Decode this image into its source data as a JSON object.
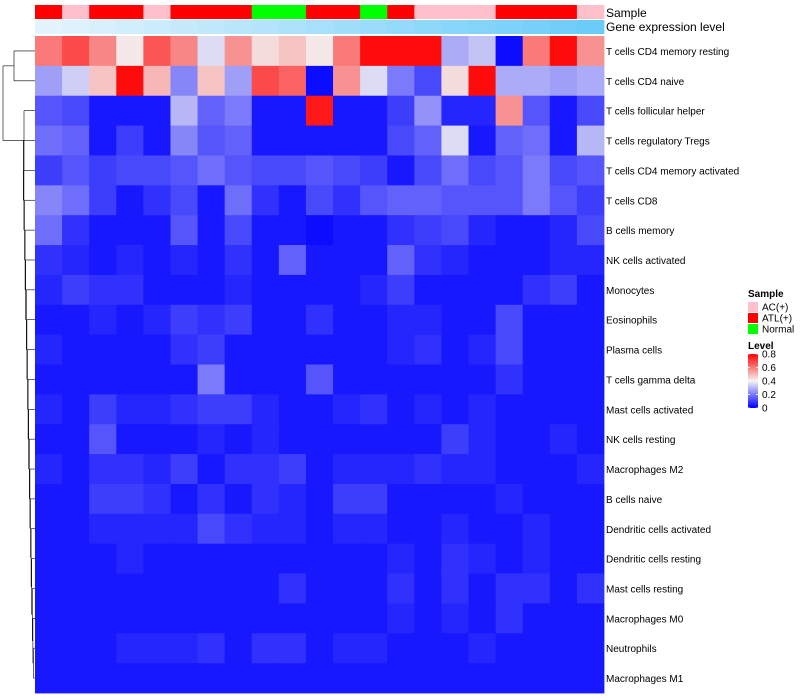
{
  "chart_data": {
    "type": "heatmap",
    "title": "",
    "annotations": {
      "sample_label": "Sample",
      "gene_label": "Gene expression level",
      "sample_groups": [
        "ATL(+)",
        "AC(+)",
        "ATL(+)",
        "ATL(+)",
        "AC(+)",
        "ATL(+)",
        "ATL(+)",
        "ATL(+)",
        "Normal",
        "Normal",
        "ATL(+)",
        "ATL(+)",
        "Normal",
        "ATL(+)",
        "AC(+)",
        "AC(+)",
        "AC(+)",
        "ATL(+)",
        "ATL(+)",
        "ATL(+)",
        "AC(+)"
      ],
      "gene_expression": [
        0.02,
        0.06,
        0.1,
        0.14,
        0.18,
        0.22,
        0.26,
        0.3,
        0.34,
        0.38,
        0.42,
        0.46,
        0.5,
        0.54,
        0.58,
        0.62,
        0.66,
        0.7,
        0.74,
        0.78,
        0.82
      ]
    },
    "rows": [
      "T cells CD4 memory resting",
      "T cells CD4 naive",
      "T cells follicular helper",
      "T cells regulatory  Tregs",
      "T cells CD4 memory activated",
      "T cells CD8",
      "B cells memory",
      "NK cells activated",
      "Monocytes",
      "Eosinophils",
      "Plasma cells",
      "T cells gamma delta",
      "Mast cells activated",
      "NK cells resting",
      "Macrophages M2",
      "B cells naive",
      "Dendritic cells activated",
      "Dendritic cells resting",
      "Mast cells resting",
      "Macrophages M0",
      "Neutrophils",
      "Macrophages M1"
    ],
    "values": [
      [
        0.6,
        0.68,
        0.58,
        0.42,
        0.66,
        0.58,
        0.36,
        0.56,
        0.44,
        0.48,
        0.42,
        0.6,
        0.78,
        0.78,
        0.78,
        0.28,
        0.32,
        0.02,
        0.6,
        0.78,
        0.56
      ],
      [
        0.26,
        0.34,
        0.48,
        0.78,
        0.5,
        0.22,
        0.48,
        0.26,
        0.68,
        0.64,
        0.02,
        0.56,
        0.36,
        0.2,
        0.12,
        0.44,
        0.78,
        0.28,
        0.28,
        0.26,
        0.28
      ],
      [
        0.14,
        0.12,
        0.04,
        0.04,
        0.04,
        0.3,
        0.16,
        0.2,
        0.04,
        0.04,
        0.76,
        0.04,
        0.04,
        0.1,
        0.24,
        0.06,
        0.06,
        0.56,
        0.14,
        0.04,
        0.12
      ],
      [
        0.18,
        0.16,
        0.04,
        0.1,
        0.04,
        0.22,
        0.14,
        0.16,
        0.04,
        0.04,
        0.04,
        0.04,
        0.04,
        0.12,
        0.16,
        0.36,
        0.04,
        0.16,
        0.18,
        0.04,
        0.3
      ],
      [
        0.1,
        0.14,
        0.1,
        0.12,
        0.12,
        0.14,
        0.18,
        0.14,
        0.12,
        0.12,
        0.14,
        0.12,
        0.1,
        0.04,
        0.12,
        0.18,
        0.12,
        0.14,
        0.2,
        0.12,
        0.14
      ],
      [
        0.22,
        0.18,
        0.1,
        0.04,
        0.08,
        0.12,
        0.04,
        0.18,
        0.08,
        0.04,
        0.12,
        0.08,
        0.14,
        0.16,
        0.16,
        0.14,
        0.14,
        0.14,
        0.2,
        0.14,
        0.1
      ],
      [
        0.18,
        0.08,
        0.04,
        0.04,
        0.04,
        0.14,
        0.04,
        0.12,
        0.04,
        0.04,
        0.02,
        0.04,
        0.04,
        0.08,
        0.1,
        0.12,
        0.06,
        0.04,
        0.04,
        0.06,
        0.12
      ],
      [
        0.08,
        0.06,
        0.04,
        0.06,
        0.04,
        0.06,
        0.04,
        0.08,
        0.04,
        0.16,
        0.04,
        0.04,
        0.04,
        0.16,
        0.08,
        0.06,
        0.04,
        0.04,
        0.04,
        0.06,
        0.06
      ],
      [
        0.06,
        0.1,
        0.08,
        0.08,
        0.04,
        0.04,
        0.04,
        0.06,
        0.04,
        0.04,
        0.04,
        0.04,
        0.06,
        0.1,
        0.04,
        0.04,
        0.04,
        0.04,
        0.08,
        0.1,
        0.04
      ],
      [
        0.04,
        0.04,
        0.06,
        0.04,
        0.06,
        0.1,
        0.08,
        0.1,
        0.04,
        0.04,
        0.08,
        0.04,
        0.04,
        0.06,
        0.06,
        0.04,
        0.04,
        0.12,
        0.04,
        0.04,
        0.04
      ],
      [
        0.06,
        0.04,
        0.04,
        0.04,
        0.04,
        0.08,
        0.1,
        0.04,
        0.04,
        0.04,
        0.04,
        0.04,
        0.04,
        0.06,
        0.08,
        0.04,
        0.06,
        0.12,
        0.04,
        0.04,
        0.04
      ],
      [
        0.04,
        0.04,
        0.04,
        0.04,
        0.04,
        0.04,
        0.2,
        0.04,
        0.04,
        0.04,
        0.14,
        0.04,
        0.04,
        0.04,
        0.04,
        0.04,
        0.04,
        0.08,
        0.04,
        0.04,
        0.04
      ],
      [
        0.06,
        0.04,
        0.1,
        0.06,
        0.06,
        0.08,
        0.1,
        0.1,
        0.06,
        0.04,
        0.04,
        0.06,
        0.08,
        0.04,
        0.06,
        0.04,
        0.06,
        0.04,
        0.04,
        0.04,
        0.04
      ],
      [
        0.04,
        0.04,
        0.14,
        0.04,
        0.04,
        0.04,
        0.06,
        0.04,
        0.06,
        0.04,
        0.04,
        0.04,
        0.04,
        0.04,
        0.04,
        0.1,
        0.06,
        0.04,
        0.04,
        0.06,
        0.04
      ],
      [
        0.06,
        0.04,
        0.08,
        0.08,
        0.06,
        0.1,
        0.04,
        0.08,
        0.08,
        0.1,
        0.04,
        0.06,
        0.06,
        0.06,
        0.08,
        0.06,
        0.06,
        0.04,
        0.04,
        0.04,
        0.06
      ],
      [
        0.04,
        0.04,
        0.1,
        0.1,
        0.08,
        0.04,
        0.08,
        0.04,
        0.08,
        0.06,
        0.04,
        0.1,
        0.1,
        0.04,
        0.04,
        0.04,
        0.04,
        0.06,
        0.04,
        0.04,
        0.04
      ],
      [
        0.04,
        0.04,
        0.06,
        0.06,
        0.06,
        0.06,
        0.12,
        0.08,
        0.06,
        0.06,
        0.04,
        0.06,
        0.06,
        0.04,
        0.04,
        0.06,
        0.04,
        0.04,
        0.06,
        0.04,
        0.04
      ],
      [
        0.04,
        0.04,
        0.04,
        0.06,
        0.04,
        0.04,
        0.04,
        0.04,
        0.04,
        0.04,
        0.04,
        0.04,
        0.04,
        0.06,
        0.04,
        0.08,
        0.06,
        0.04,
        0.06,
        0.04,
        0.04
      ],
      [
        0.04,
        0.04,
        0.04,
        0.04,
        0.04,
        0.04,
        0.04,
        0.04,
        0.04,
        0.08,
        0.04,
        0.04,
        0.04,
        0.08,
        0.04,
        0.08,
        0.04,
        0.08,
        0.08,
        0.04,
        0.08
      ],
      [
        0.04,
        0.04,
        0.04,
        0.04,
        0.04,
        0.04,
        0.04,
        0.04,
        0.04,
        0.04,
        0.04,
        0.04,
        0.04,
        0.06,
        0.04,
        0.06,
        0.04,
        0.08,
        0.04,
        0.04,
        0.04
      ],
      [
        0.04,
        0.04,
        0.04,
        0.06,
        0.06,
        0.06,
        0.08,
        0.04,
        0.08,
        0.08,
        0.04,
        0.06,
        0.06,
        0.04,
        0.04,
        0.04,
        0.06,
        0.04,
        0.04,
        0.04,
        0.04
      ],
      [
        0.04,
        0.04,
        0.04,
        0.04,
        0.04,
        0.04,
        0.04,
        0.04,
        0.04,
        0.04,
        0.04,
        0.04,
        0.04,
        0.04,
        0.04,
        0.04,
        0.04,
        0.04,
        0.04,
        0.04,
        0.04
      ]
    ],
    "legend": {
      "sample_title": "Sample",
      "sample_entries": [
        {
          "label": "AC(+)",
          "color": "#FFC0CB"
        },
        {
          "label": "ATL(+)",
          "color": "#FF0000"
        },
        {
          "label": "Normal",
          "color": "#00FF00"
        }
      ],
      "level_title": "Level",
      "level_ticks": [
        0.8,
        0.6,
        0.4,
        0.2,
        0
      ],
      "level_tick_labels": [
        "0.8",
        "0.6",
        "0.4",
        "0.2",
        "0"
      ],
      "color_range": [
        0,
        0.8
      ],
      "placement": "right"
    },
    "colors": {
      "low": "#0000FF",
      "mid": "#F4F4F4",
      "high": "#FF0000",
      "gene_low": "#E6F5FD",
      "gene_high": "#4FC3F7",
      "dendrogram": "#000000",
      "text": "#000000"
    }
  }
}
